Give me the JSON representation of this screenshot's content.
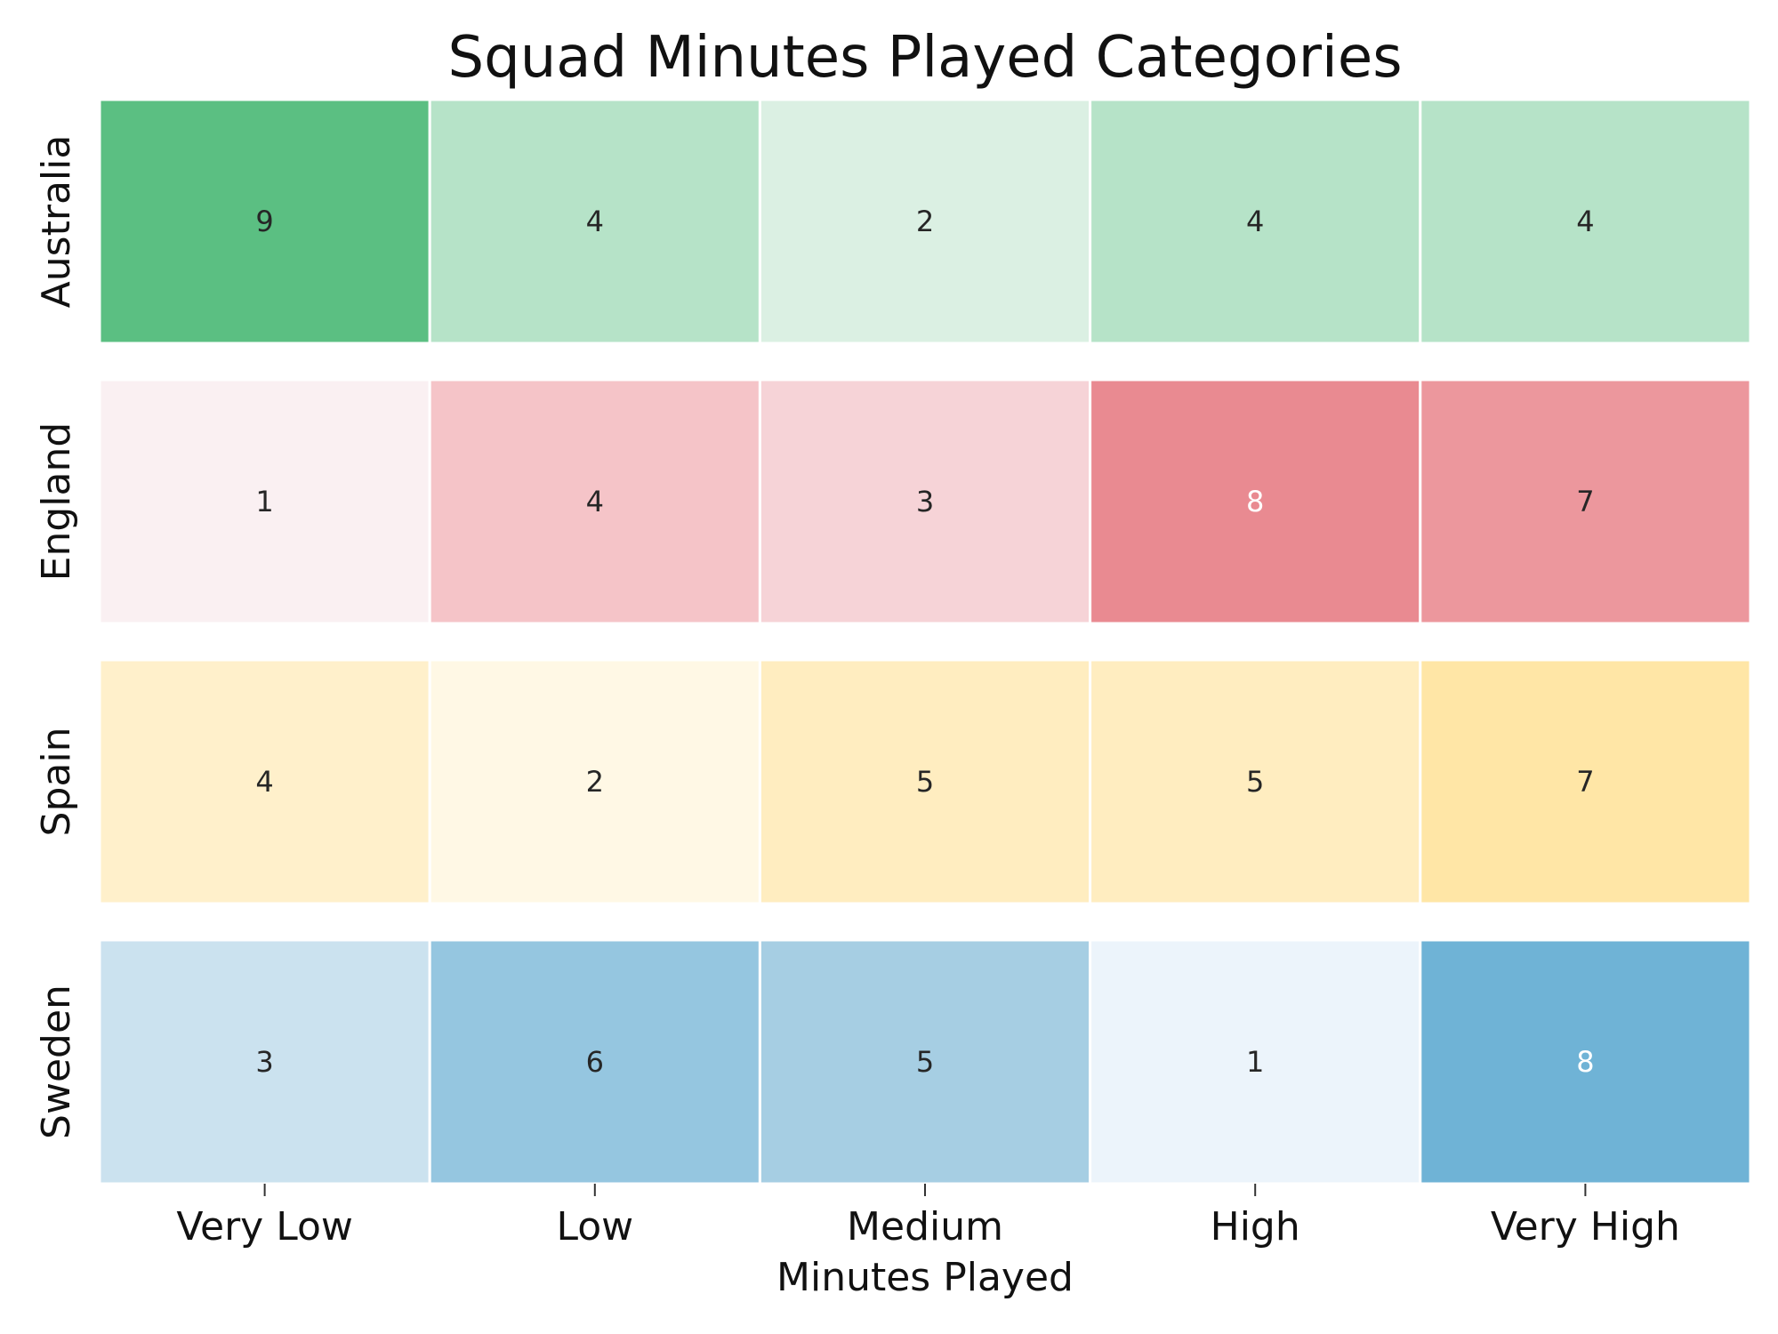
{
  "chart_data": {
    "type": "heatmap",
    "title": "Squad Minutes Played Categories",
    "xlabel": "Minutes Played",
    "ylabel": "",
    "categories": [
      "Very Low",
      "Low",
      "Medium",
      "High",
      "Very High"
    ],
    "rows": [
      {
        "name": "Australia",
        "values": [
          9,
          4,
          2,
          4,
          4
        ],
        "colors": [
          "#5bbf82",
          "#b6e3c8",
          "#dbf0e3",
          "#b6e3c8",
          "#b6e3c8"
        ]
      },
      {
        "name": "England",
        "values": [
          1,
          4,
          3,
          8,
          7
        ],
        "colors": [
          "#faf0f2",
          "#f5c4c8",
          "#f6d3d7",
          "#e98a91",
          "#ec979d"
        ]
      },
      {
        "name": "Spain",
        "values": [
          4,
          2,
          5,
          5,
          7
        ],
        "colors": [
          "#fff0cb",
          "#fff8e5",
          "#ffedc0",
          "#ffedc0",
          "#ffe6a6"
        ]
      },
      {
        "name": "Sweden",
        "values": [
          3,
          6,
          5,
          1,
          8
        ],
        "colors": [
          "#cbe2ef",
          "#95c6e0",
          "#a6cee3",
          "#ecf4fb",
          "#6fb3d6"
        ]
      }
    ],
    "label_colors": {
      "dark": "#262626",
      "light": "#ffffff"
    },
    "grid": false,
    "legend": "none"
  }
}
